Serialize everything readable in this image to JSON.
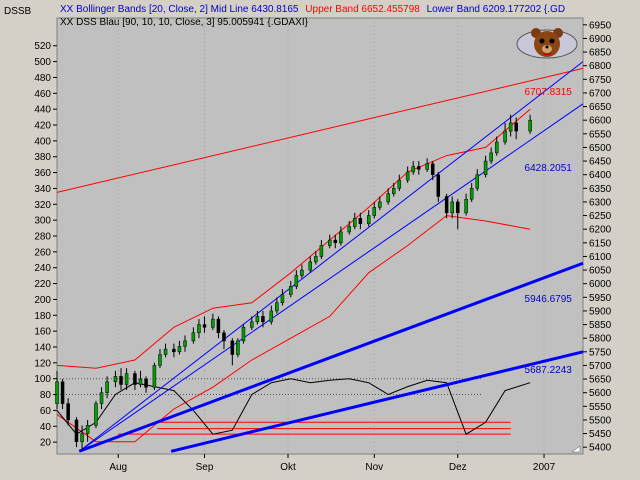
{
  "title": "DSSB",
  "legend": {
    "line1_a": "XX Bollinger Bands [20, Close, 2] Mid Line 6430.8165",
    "line1_b": "Upper Band 6652.455798",
    "line1_c": "Lower Band 6209.177202 {.GD",
    "line2": "XX DSS Blau [90, 10, 10, Close, 3] 95.005941 {.GDAXI}"
  },
  "logo": "bear-icon",
  "colors": {
    "plot_bg": "#c0c0c0",
    "frame_bg": "#d4d0c8",
    "up_candle": "#00a000",
    "down_candle": "#000000",
    "band": "#ff0000",
    "trend": "#0000ff",
    "dss": "#000000",
    "text_blue": "#0000cc",
    "text_red": "#ff0000"
  },
  "chart_data": {
    "type": "line",
    "x_range": [
      "2006-07-10",
      "2007-01-15"
    ],
    "x_ticks": [
      {
        "label": "Aug",
        "date": "2006-08-01"
      },
      {
        "label": "Sep",
        "date": "2006-09-01"
      },
      {
        "label": "Okt",
        "date": "2006-10-01"
      },
      {
        "label": "Nov",
        "date": "2006-11-01"
      },
      {
        "label": "Dez",
        "date": "2006-12-01"
      },
      {
        "label": "2007",
        "date": "2007-01-01"
      }
    ],
    "price_axis": {
      "min": 5375,
      "max": 6975,
      "ticks": [
        "6950",
        "6900",
        "6850",
        "6800",
        "6750",
        "6700",
        "6650",
        "6600",
        "6550",
        "6500",
        "6450",
        "6400",
        "6350",
        "6300",
        "6250",
        "6200",
        "6150",
        "6100",
        "6050",
        "6000",
        "5950",
        "5900",
        "5850",
        "5800",
        "5750",
        "5700",
        "5650",
        "5600",
        "5550",
        "5500",
        "5450",
        "5400"
      ]
    },
    "indicator_axis": {
      "min": 5,
      "max": 555,
      "ticks": [
        "520",
        "500",
        "480",
        "460",
        "440",
        "420",
        "400",
        "380",
        "360",
        "340",
        "320",
        "300",
        "280",
        "260",
        "240",
        "220",
        "200",
        "180",
        "160",
        "140",
        "120",
        "100",
        "80",
        "60",
        "40",
        "20"
      ]
    },
    "annotations": [
      {
        "text": "6707.8315",
        "color": "#ff0000",
        "date": "2006-12-25",
        "value": 6707.8315
      },
      {
        "text": "6428.2051",
        "color": "#0000cc",
        "date": "2006-12-25",
        "value": 6428.2051
      },
      {
        "text": "5946.6795",
        "color": "#0000cc",
        "date": "2006-12-25",
        "value": 5946.6795
      },
      {
        "text": "5687.2243",
        "color": "#0000cc",
        "date": "2006-12-25",
        "value": 5687.2243
      }
    ],
    "trendlines": [
      {
        "color": "#ff0000",
        "width": 1,
        "points": [
          [
            "2006-07-10",
            6335
          ],
          [
            "2007-01-15",
            6790
          ]
        ]
      },
      {
        "color": "#0000ff",
        "width": 1,
        "points": [
          [
            "2006-07-18",
            5385
          ],
          [
            "2007-01-15",
            6815
          ]
        ]
      },
      {
        "color": "#0000ff",
        "width": 1,
        "points": [
          [
            "2006-07-18",
            5385
          ],
          [
            "2007-01-15",
            6660
          ]
        ]
      },
      {
        "color": "#0000ff",
        "width": 3,
        "points": [
          [
            "2006-07-18",
            5385
          ],
          [
            "2007-01-15",
            6075
          ]
        ]
      },
      {
        "color": "#0000ff",
        "width": 3,
        "points": [
          [
            "2006-08-20",
            5385
          ],
          [
            "2007-01-15",
            5750
          ]
        ]
      }
    ],
    "levels": [
      {
        "color": "#ff0000",
        "value": 45,
        "from": "2006-08-15",
        "to": "2006-12-20"
      },
      {
        "color": "#ff0000",
        "value": 37,
        "from": "2006-08-15",
        "to": "2006-12-20"
      },
      {
        "color": "#ff0000",
        "value": 30,
        "from": "2006-08-01",
        "to": "2006-12-20"
      }
    ],
    "candles": [
      [
        "2006-07-10",
        5560,
        5640,
        5680,
        5540
      ],
      [
        "2006-07-12",
        5640,
        5560,
        5650,
        5540
      ],
      [
        "2006-07-14",
        5560,
        5500,
        5580,
        5480
      ],
      [
        "2006-07-17",
        5500,
        5420,
        5510,
        5400
      ],
      [
        "2006-07-19",
        5420,
        5450,
        5480,
        5390
      ],
      [
        "2006-07-21",
        5450,
        5480,
        5500,
        5420
      ],
      [
        "2006-07-24",
        5480,
        5560,
        5570,
        5470
      ],
      [
        "2006-07-26",
        5560,
        5600,
        5620,
        5540
      ],
      [
        "2006-07-28",
        5600,
        5640,
        5660,
        5580
      ],
      [
        "2006-07-31",
        5640,
        5660,
        5680,
        5620
      ],
      [
        "2006-08-02",
        5660,
        5630,
        5690,
        5610
      ],
      [
        "2006-08-04",
        5630,
        5670,
        5690,
        5610
      ],
      [
        "2006-08-07",
        5670,
        5630,
        5680,
        5610
      ],
      [
        "2006-08-09",
        5630,
        5650,
        5680,
        5620
      ],
      [
        "2006-08-11",
        5650,
        5620,
        5660,
        5600
      ],
      [
        "2006-08-14",
        5620,
        5700,
        5710,
        5610
      ],
      [
        "2006-08-16",
        5700,
        5740,
        5760,
        5690
      ],
      [
        "2006-08-18",
        5740,
        5760,
        5780,
        5730
      ],
      [
        "2006-08-21",
        5760,
        5750,
        5780,
        5730
      ],
      [
        "2006-08-23",
        5750,
        5770,
        5790,
        5740
      ],
      [
        "2006-08-25",
        5770,
        5790,
        5810,
        5750
      ],
      [
        "2006-08-28",
        5790,
        5820,
        5840,
        5780
      ],
      [
        "2006-08-30",
        5820,
        5850,
        5870,
        5800
      ],
      [
        "2006-09-01",
        5850,
        5840,
        5880,
        5820
      ],
      [
        "2006-09-04",
        5840,
        5870,
        5890,
        5830
      ],
      [
        "2006-09-06",
        5870,
        5820,
        5880,
        5800
      ],
      [
        "2006-09-08",
        5820,
        5790,
        5830,
        5760
      ],
      [
        "2006-09-11",
        5790,
        5740,
        5800,
        5700
      ],
      [
        "2006-09-13",
        5740,
        5790,
        5800,
        5730
      ],
      [
        "2006-09-15",
        5790,
        5840,
        5850,
        5780
      ],
      [
        "2006-09-18",
        5840,
        5860,
        5880,
        5830
      ],
      [
        "2006-09-20",
        5860,
        5880,
        5900,
        5850
      ],
      [
        "2006-09-22",
        5880,
        5860,
        5900,
        5840
      ],
      [
        "2006-09-25",
        5860,
        5900,
        5920,
        5850
      ],
      [
        "2006-09-27",
        5900,
        5930,
        5950,
        5890
      ],
      [
        "2006-09-29",
        5930,
        5960,
        5980,
        5920
      ],
      [
        "2006-10-02",
        5960,
        5990,
        6010,
        5950
      ],
      [
        "2006-10-04",
        5990,
        6030,
        6050,
        5980
      ],
      [
        "2006-10-06",
        6030,
        6050,
        6070,
        6020
      ],
      [
        "2006-10-09",
        6050,
        6080,
        6100,
        6040
      ],
      [
        "2006-10-11",
        6080,
        6100,
        6120,
        6070
      ],
      [
        "2006-10-13",
        6100,
        6140,
        6160,
        6090
      ],
      [
        "2006-10-16",
        6140,
        6160,
        6180,
        6130
      ],
      [
        "2006-10-18",
        6160,
        6150,
        6180,
        6130
      ],
      [
        "2006-10-20",
        6150,
        6190,
        6210,
        6140
      ],
      [
        "2006-10-23",
        6190,
        6210,
        6230,
        6180
      ],
      [
        "2006-10-25",
        6210,
        6240,
        6260,
        6200
      ],
      [
        "2006-10-27",
        6240,
        6220,
        6260,
        6200
      ],
      [
        "2006-10-30",
        6220,
        6250,
        6270,
        6210
      ],
      [
        "2006-11-01",
        6250,
        6280,
        6300,
        6240
      ],
      [
        "2006-11-03",
        6280,
        6300,
        6320,
        6270
      ],
      [
        "2006-11-06",
        6300,
        6330,
        6350,
        6290
      ],
      [
        "2006-11-08",
        6330,
        6350,
        6370,
        6320
      ],
      [
        "2006-11-10",
        6350,
        6380,
        6400,
        6340
      ],
      [
        "2006-11-13",
        6380,
        6410,
        6430,
        6370
      ],
      [
        "2006-11-15",
        6410,
        6430,
        6450,
        6400
      ],
      [
        "2006-11-17",
        6430,
        6420,
        6450,
        6400
      ],
      [
        "2006-11-20",
        6420,
        6440,
        6460,
        6410
      ],
      [
        "2006-11-22",
        6440,
        6400,
        6450,
        6380
      ],
      [
        "2006-11-24",
        6400,
        6320,
        6410,
        6300
      ],
      [
        "2006-11-27",
        6320,
        6260,
        6330,
        6240
      ],
      [
        "2006-11-29",
        6260,
        6300,
        6320,
        6240
      ],
      [
        "2006-12-01",
        6300,
        6260,
        6310,
        6200
      ],
      [
        "2006-12-04",
        6260,
        6310,
        6330,
        6250
      ],
      [
        "2006-12-06",
        6310,
        6350,
        6370,
        6300
      ],
      [
        "2006-12-08",
        6350,
        6400,
        6420,
        6340
      ],
      [
        "2006-12-11",
        6400,
        6450,
        6470,
        6390
      ],
      [
        "2006-12-13",
        6450,
        6480,
        6500,
        6440
      ],
      [
        "2006-12-15",
        6480,
        6520,
        6540,
        6470
      ],
      [
        "2006-12-18",
        6520,
        6560,
        6590,
        6510
      ],
      [
        "2006-12-20",
        6560,
        6590,
        6620,
        6540
      ],
      [
        "2006-12-22",
        6590,
        6560,
        6610,
        6530
      ],
      [
        "2006-12-27",
        6560,
        6600,
        6620,
        6550
      ]
    ],
    "series": [
      {
        "color": "#ff0000",
        "points": [
          [
            "2006-07-10",
            5520
          ],
          [
            "2006-07-24",
            5420
          ],
          [
            "2006-08-07",
            5420
          ],
          [
            "2006-08-21",
            5540
          ],
          [
            "2006-09-04",
            5620
          ],
          [
            "2006-09-18",
            5720
          ],
          [
            "2006-10-02",
            5800
          ],
          [
            "2006-10-16",
            5880
          ],
          [
            "2006-10-30",
            6040
          ],
          [
            "2006-11-13",
            6140
          ],
          [
            "2006-11-27",
            6250
          ],
          [
            "2006-12-11",
            6230
          ],
          [
            "2006-12-27",
            6200
          ]
        ]
      },
      {
        "color": "#ff0000",
        "points": [
          [
            "2006-07-10",
            5700
          ],
          [
            "2006-07-24",
            5690
          ],
          [
            "2006-08-07",
            5720
          ],
          [
            "2006-08-21",
            5840
          ],
          [
            "2006-09-04",
            5910
          ],
          [
            "2006-09-18",
            5930
          ],
          [
            "2006-10-02",
            6040
          ],
          [
            "2006-10-16",
            6160
          ],
          [
            "2006-10-30",
            6280
          ],
          [
            "2006-11-13",
            6410
          ],
          [
            "2006-11-27",
            6470
          ],
          [
            "2006-12-11",
            6500
          ],
          [
            "2006-12-27",
            6640
          ]
        ]
      },
      {
        "color": "#000000",
        "points": [
          [
            "2006-07-10",
            60
          ],
          [
            "2006-07-17",
            30
          ],
          [
            "2006-07-24",
            45
          ],
          [
            "2006-07-31",
            80
          ],
          [
            "2006-08-07",
            95
          ],
          [
            "2006-08-14",
            90
          ],
          [
            "2006-08-21",
            85
          ],
          [
            "2006-08-28",
            60
          ],
          [
            "2006-09-04",
            30
          ],
          [
            "2006-09-11",
            35
          ],
          [
            "2006-09-18",
            80
          ],
          [
            "2006-09-25",
            95
          ],
          [
            "2006-10-02",
            100
          ],
          [
            "2006-10-09",
            95
          ],
          [
            "2006-10-16",
            98
          ],
          [
            "2006-10-23",
            100
          ],
          [
            "2006-10-30",
            95
          ],
          [
            "2006-11-06",
            80
          ],
          [
            "2006-11-13",
            90
          ],
          [
            "2006-11-20",
            98
          ],
          [
            "2006-11-27",
            95
          ],
          [
            "2006-12-04",
            30
          ],
          [
            "2006-12-11",
            45
          ],
          [
            "2006-12-18",
            85
          ],
          [
            "2006-12-27",
            95
          ]
        ]
      }
    ]
  }
}
